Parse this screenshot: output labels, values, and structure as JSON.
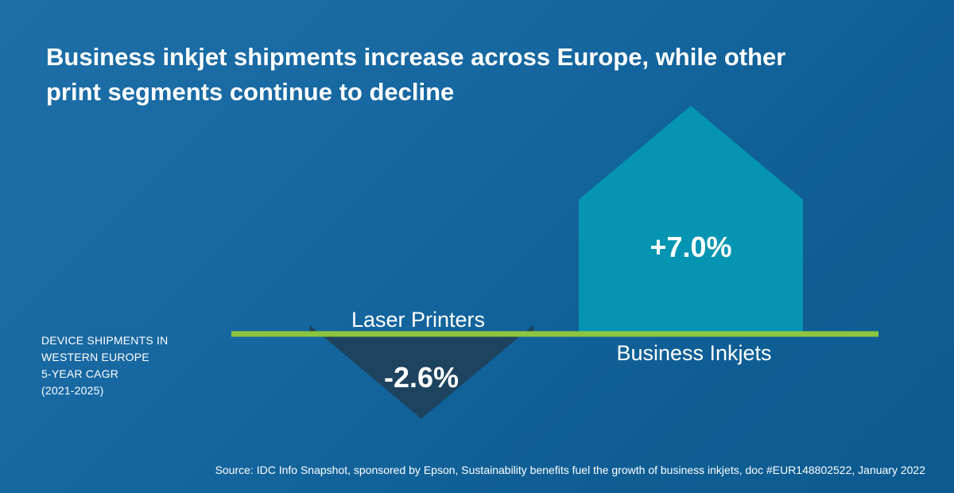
{
  "chart_data": {
    "type": "bar",
    "title": "Business inkjet shipments increase across Europe, while other print segments continue to decline",
    "categories": [
      "Laser Printers",
      "Business Inkjets"
    ],
    "values": [
      -2.6,
      7.0
    ],
    "value_labels": [
      "-2.6%",
      "+7.0%"
    ],
    "ylabel": "Device shipments in Western Europe 5-year CAGR (2021-2025)",
    "ylim": [
      -4,
      11
    ],
    "colors": {
      "Laser Printers": "#1d435e",
      "Business Inkjets": "#0595b2",
      "baseline": "#8cc63f"
    }
  },
  "side_note": {
    "line1": "DEVICE SHIPMENTS IN",
    "line2": "WESTERN EUROPE",
    "line3": "5-YEAR CAGR",
    "line4": "(2021-2025)"
  },
  "source": "Source: IDC Info Snapshot, sponsored by Epson, Sustainability benefits fuel the growth of business inkjets, doc #EUR148802522, January 2022"
}
